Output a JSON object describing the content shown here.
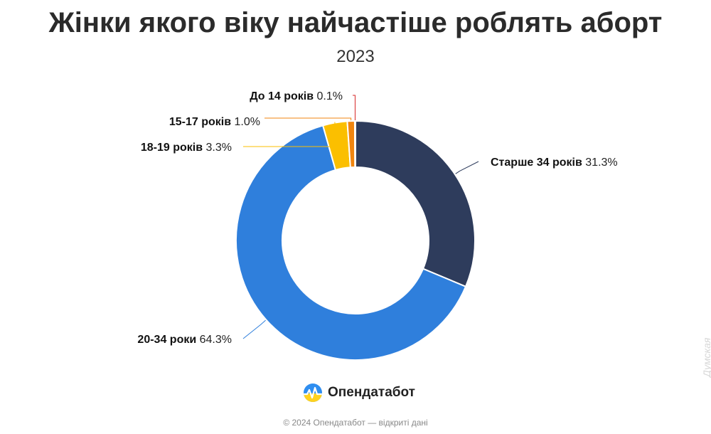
{
  "chart_data": {
    "type": "pie",
    "title": "Жінки якого віку найчастіше роблять аборт",
    "subtitle": "2023",
    "donut": true,
    "slices": [
      {
        "label": "Старше 34 років",
        "value": 31.3,
        "value_label": "31.3%",
        "color": "#2e3c5c"
      },
      {
        "label": "20-34 роки",
        "value": 64.3,
        "value_label": "64.3%",
        "color": "#2f7fdc"
      },
      {
        "label": "18-19 років",
        "value": 3.3,
        "value_label": "3.3%",
        "color": "#fbbf00"
      },
      {
        "label": "15-17 років",
        "value": 1.0,
        "value_label": "1.0%",
        "color": "#f0850f"
      },
      {
        "label": "До 14 років",
        "value": 0.1,
        "value_label": "0.1%",
        "color": "#d62828"
      }
    ]
  },
  "branding": {
    "name": "Опендатабот",
    "logo_icon": "opendatabot-logo-icon"
  },
  "footer": {
    "text": "© 2024 Опендатабот — відкриті дані"
  },
  "watermark": {
    "text": "Думская"
  }
}
